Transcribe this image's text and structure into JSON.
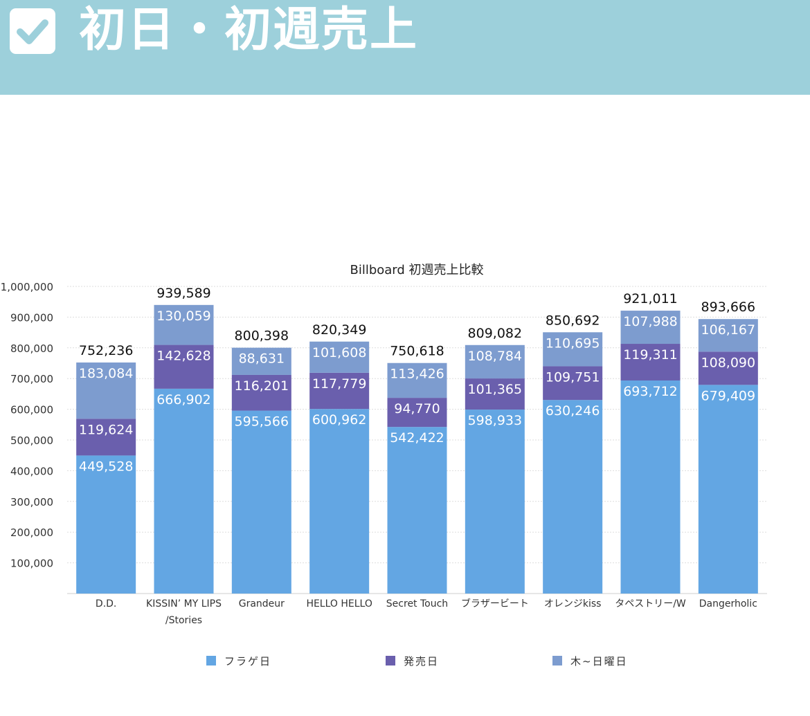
{
  "header": {
    "title": "初日・初週売上",
    "icon": "checkbox-checked-icon",
    "background_color": "#9dd0db"
  },
  "chart_data": {
    "type": "bar",
    "stacked": true,
    "title": "Billboard 初週売上比較",
    "xlabel": "",
    "ylabel": "",
    "ylim": [
      0,
      1000000
    ],
    "yticks": [
      "100,000",
      "200,000",
      "300,000",
      "400,000",
      "500,000",
      "600,000",
      "700,000",
      "800,000",
      "900,000",
      "1,000,000"
    ],
    "grid": true,
    "legend_position": "bottom",
    "categories": [
      [
        "D.D."
      ],
      [
        "KISSIN’ MY LIPS",
        "/Stories"
      ],
      [
        "Grandeur"
      ],
      [
        "HELLO HELLO"
      ],
      [
        "Secret Touch"
      ],
      [
        "ブラザービート"
      ],
      [
        "オレンジkiss"
      ],
      [
        "タペストリー/W"
      ],
      [
        "Dangerholic"
      ]
    ],
    "series": [
      {
        "name": "フラゲ日",
        "color": "#63a6e3",
        "values": [
          449528,
          666902,
          595566,
          600962,
          542422,
          598933,
          630246,
          693712,
          679409
        ],
        "labels": [
          "449,528",
          "666,902",
          "595,566",
          "600,962",
          "542,422",
          "598,933",
          "630,246",
          "693,712",
          "679,409"
        ]
      },
      {
        "name": "発売日",
        "color": "#6a5fad",
        "values": [
          119624,
          142628,
          116201,
          117779,
          94770,
          101365,
          109751,
          119311,
          108090
        ],
        "labels": [
          "119,624",
          "142,628",
          "116,201",
          "117,779",
          "94,770",
          "101,365",
          "109,751",
          "119,311",
          "108,090"
        ]
      },
      {
        "name": "木~日曜日",
        "color": "#7d9ccf",
        "values": [
          183084,
          130059,
          88631,
          101608,
          113426,
          108784,
          110695,
          107988,
          106167
        ],
        "labels": [
          "183,084",
          "130,059",
          "88,631",
          "101,608",
          "113,426",
          "108,784",
          "110,695",
          "107,988",
          "106,167"
        ]
      }
    ],
    "totals": [
      752236,
      939589,
      800398,
      820349,
      750618,
      809082,
      850692,
      921011,
      893666
    ],
    "total_labels": [
      "752,236",
      "939,589",
      "800,398",
      "820,349",
      "750,618",
      "809,082",
      "850,692",
      "921,011",
      "893,666"
    ]
  }
}
